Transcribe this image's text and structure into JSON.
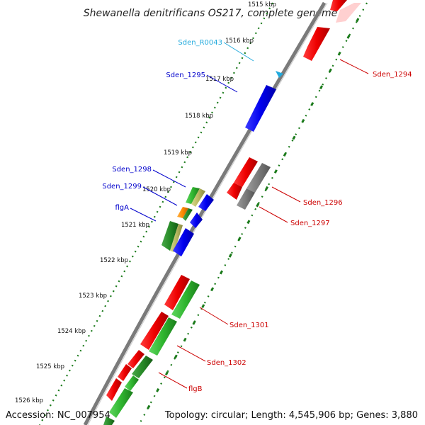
{
  "title": "Shewanella denitrificans OS217, complete genome",
  "footer": {
    "accession": "Accession: NC_007954",
    "topology": "Topology: circular; Length: 4,545,906 bp; Genes: 3,880"
  },
  "colors": {
    "backbone": "#7a7a7a",
    "tick_dots": "#1a7a1a",
    "reverse_strand_label": "#0000cc",
    "forward_strand_label": "#cc0000",
    "rna_label": "#22aadd"
  },
  "ruler": [
    {
      "label": "1515 kbp",
      "faded": true
    },
    {
      "label": "1516 kbp"
    },
    {
      "label": "1517 kbp"
    },
    {
      "label": "1518 kbp"
    },
    {
      "label": "1519 kbp"
    },
    {
      "label": "1520 kbp"
    },
    {
      "label": "1521 kbp"
    },
    {
      "label": "1522 kbp"
    },
    {
      "label": "1523 kbp"
    },
    {
      "label": "1524 kbp"
    },
    {
      "label": "1525 kbp"
    },
    {
      "label": "1526 kbp"
    }
  ],
  "gene_labels": [
    {
      "id": "sden-r0043",
      "text": "Sden_R0043",
      "side": "left",
      "color": "#22aadd"
    },
    {
      "id": "sden-1295",
      "text": "Sden_1295",
      "side": "left",
      "color": "#0000cc"
    },
    {
      "id": "sden-1298",
      "text": "Sden_1298",
      "side": "left",
      "color": "#0000cc"
    },
    {
      "id": "sden-1299",
      "text": "Sden_1299",
      "side": "left",
      "color": "#0000cc"
    },
    {
      "id": "flga",
      "text": "flgA",
      "side": "left",
      "color": "#0000cc"
    },
    {
      "id": "sden-1294",
      "text": "Sden_1294",
      "side": "right",
      "color": "#cc0000"
    },
    {
      "id": "sden-1296",
      "text": "Sden_1296",
      "side": "right",
      "color": "#cc0000"
    },
    {
      "id": "sden-1297",
      "text": "Sden_1297",
      "side": "right",
      "color": "#cc0000"
    },
    {
      "id": "sden-1301",
      "text": "Sden_1301",
      "side": "right",
      "color": "#cc0000"
    },
    {
      "id": "sden-1302",
      "text": "Sden_1302",
      "side": "right",
      "color": "#cc0000"
    },
    {
      "id": "flgb",
      "text": "flgB",
      "side": "right",
      "color": "#cc0000"
    }
  ]
}
